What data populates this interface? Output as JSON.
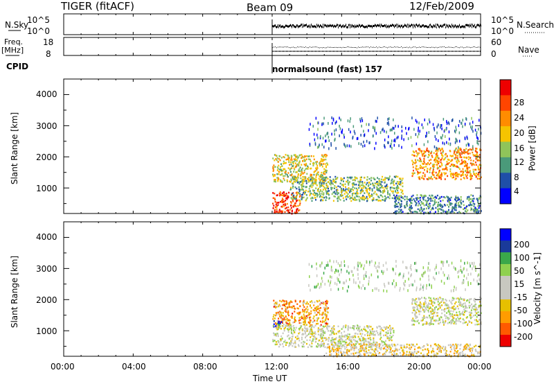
{
  "header": {
    "station": "TIGER (fitACF)",
    "beam": "Beam 09",
    "date": "12/Feb/2009"
  },
  "sky_panel": {
    "left_label": "N.Sky",
    "right_label": "N.Search",
    "left_ticks": [
      "10^5",
      "10^0"
    ],
    "right_ticks": [
      "10^5",
      "10^0"
    ]
  },
  "freq_panel": {
    "left_label": "Freq.",
    "left_unit": "[MHz]",
    "right_label": "Nave",
    "left_ticks": [
      "18",
      "8"
    ],
    "right_ticks": [
      "60",
      "0"
    ]
  },
  "cpid": {
    "label": "CPID",
    "program": "normalsound (fast) 157"
  },
  "colors": {
    "power_scale": [
      "#0000ff",
      "#1f4fa8",
      "#4a9a7a",
      "#8fc45a",
      "#f5c400",
      "#ff8c00",
      "#ff4500",
      "#ee0000"
    ],
    "velocity_scale": [
      "#ee0000",
      "#ff5a00",
      "#ff9c00",
      "#e6c000",
      "#c8c8c0",
      "#c8c8c0",
      "#8fd14f",
      "#3aa84a",
      "#1a3a9a",
      "#0000ff"
    ],
    "scatter_gray": "#c8c8c0"
  },
  "chart_data": [
    {
      "type": "heatmap",
      "name": "power",
      "xlabel": "",
      "ylabel": "Slant Range [km]",
      "yticks": [
        "1000",
        "2000",
        "3000",
        "4000"
      ],
      "ylim": [
        180,
        4500
      ],
      "xlim_hours": [
        0,
        24
      ],
      "colorbar_label": "Power [dB]",
      "colorbar_ticks": [
        "4",
        "8",
        "12",
        "16",
        "20",
        "24",
        "28"
      ],
      "colorbar_range": [
        0,
        30
      ],
      "data_start_hour": 12,
      "echo_regions": [
        {
          "t0": 12.0,
          "t1": 15.2,
          "r0": 1200,
          "r1": 2100,
          "level": 16
        },
        {
          "t0": 12.0,
          "t1": 13.6,
          "r0": 200,
          "r1": 900,
          "level": 26
        },
        {
          "t0": 13.0,
          "t1": 19.5,
          "r0": 600,
          "r1": 1400,
          "level": 12
        },
        {
          "t0": 20.0,
          "t1": 24.0,
          "r0": 1300,
          "r1": 2300,
          "level": 20
        },
        {
          "t0": 19.0,
          "t1": 24.0,
          "r0": 200,
          "r1": 800,
          "level": 9
        },
        {
          "t0": 14.0,
          "t1": 24.0,
          "r0": 2300,
          "r1": 3300,
          "level": 6
        }
      ]
    },
    {
      "type": "heatmap",
      "name": "velocity",
      "xlabel": "Time UT",
      "ylabel": "Slant Range [km]",
      "yticks": [
        "1000",
        "2000",
        "3000",
        "4000"
      ],
      "ylim": [
        180,
        4500
      ],
      "xlim_hours": [
        0,
        24
      ],
      "xticks": [
        "00:00",
        "04:00",
        "08:00",
        "12:00",
        "16:00",
        "20:00",
        "00:00"
      ],
      "colorbar_label": "Velocity [m s^-1]",
      "colorbar_ticks": [
        "200",
        "100",
        "50",
        "15",
        "-15",
        "-50",
        "-100",
        "-200"
      ],
      "data_start_hour": 12,
      "echo_regions": [
        {
          "t0": 12.0,
          "t1": 15.2,
          "r0": 1200,
          "r1": 2000,
          "level": -120
        },
        {
          "t0": 12.0,
          "t1": 12.5,
          "r0": 1150,
          "r1": 1350,
          "level": 180
        },
        {
          "t0": 12.0,
          "t1": 19.0,
          "r0": 500,
          "r1": 1200,
          "level": 0
        },
        {
          "t0": 20.0,
          "t1": 24.0,
          "r0": 1200,
          "r1": 2100,
          "level": 0
        },
        {
          "t0": 15.0,
          "t1": 24.0,
          "r0": 200,
          "r1": 600,
          "level": -60
        },
        {
          "t0": 14.0,
          "t1": 24.0,
          "r0": 2300,
          "r1": 3300,
          "level": 40
        }
      ]
    }
  ]
}
